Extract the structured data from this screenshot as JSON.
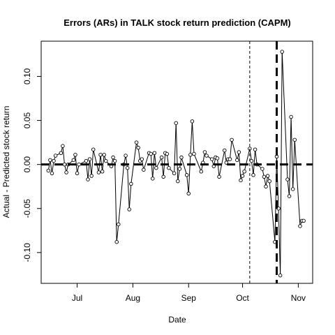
{
  "chart_data": {
    "type": "line",
    "title": "Errors (ARs) in TALK stock return prediction (CAPM)",
    "xlabel": "Date",
    "ylabel": "Actual - Predicted stock return",
    "x_ticks": [
      {
        "label": "Jul",
        "date": "2020-07-01"
      },
      {
        "label": "Aug",
        "date": "2020-08-01"
      },
      {
        "label": "Sep",
        "date": "2020-09-01"
      },
      {
        "label": "Oct",
        "date": "2020-10-01"
      },
      {
        "label": "Nov",
        "date": "2020-11-01"
      }
    ],
    "y_ticks": [
      -0.1,
      -0.05,
      0.0,
      0.05,
      0.1
    ],
    "y_tick_labels": [
      "-0.10",
      "-0.05",
      "0.00",
      "0.05",
      "0.10"
    ],
    "xlim": [
      "2020-06-11",
      "2020-11-09"
    ],
    "ylim": [
      -0.135,
      0.14
    ],
    "grid": false,
    "reference_lines": [
      {
        "orientation": "horizontal",
        "value": 0.0,
        "style": "thick-dashed"
      },
      {
        "orientation": "vertical",
        "date": "2020-10-05",
        "style": "thin-dashed"
      },
      {
        "orientation": "vertical",
        "date": "2020-10-20",
        "style": "thick-dashed"
      }
    ],
    "series": [
      {
        "x": [
          "2020-06-15",
          "2020-06-16",
          "2020-06-17",
          "2020-06-18",
          "2020-06-19",
          "2020-06-22",
          "2020-06-23",
          "2020-06-24",
          "2020-06-25",
          "2020-06-26",
          "2020-06-29",
          "2020-06-30",
          "2020-07-01",
          "2020-07-02",
          "2020-07-06",
          "2020-07-07",
          "2020-07-08",
          "2020-07-09",
          "2020-07-10",
          "2020-07-13",
          "2020-07-14",
          "2020-07-15",
          "2020-07-16",
          "2020-07-17",
          "2020-07-20",
          "2020-07-21",
          "2020-07-22",
          "2020-07-23",
          "2020-07-24",
          "2020-07-27",
          "2020-07-28",
          "2020-07-29",
          "2020-07-30",
          "2020-07-31",
          "2020-08-03",
          "2020-08-04",
          "2020-08-05",
          "2020-08-06",
          "2020-08-07",
          "2020-08-10",
          "2020-08-11",
          "2020-08-12",
          "2020-08-13",
          "2020-08-14",
          "2020-08-17",
          "2020-08-18",
          "2020-08-19",
          "2020-08-20",
          "2020-08-21",
          "2020-08-24",
          "2020-08-25",
          "2020-08-26",
          "2020-08-27",
          "2020-08-28",
          "2020-08-31",
          "2020-09-01",
          "2020-09-02",
          "2020-09-03",
          "2020-09-04",
          "2020-09-08",
          "2020-09-09",
          "2020-09-10",
          "2020-09-11",
          "2020-09-14",
          "2020-09-15",
          "2020-09-16",
          "2020-09-17",
          "2020-09-18",
          "2020-09-21",
          "2020-09-22",
          "2020-09-23",
          "2020-09-24",
          "2020-09-25",
          "2020-09-28",
          "2020-09-29",
          "2020-09-30",
          "2020-10-01",
          "2020-10-02",
          "2020-10-05",
          "2020-10-06",
          "2020-10-07",
          "2020-10-08",
          "2020-10-09",
          "2020-10-12",
          "2020-10-13",
          "2020-10-14",
          "2020-10-15",
          "2020-10-16",
          "2020-10-19",
          "2020-10-20",
          "2020-10-21",
          "2020-10-22",
          "2020-10-23",
          "2020-10-26",
          "2020-10-27",
          "2020-10-28",
          "2020-10-29",
          "2020-10-30",
          "2020-11-02",
          "2020-11-03",
          "2020-11-04"
        ],
        "y": [
          -0.007,
          0.005,
          -0.01,
          0.004,
          0.01,
          0.013,
          0.021,
          0.0,
          -0.009,
          0.0,
          0.005,
          0.011,
          -0.01,
          0.0,
          0.004,
          -0.017,
          0.006,
          -0.013,
          0.017,
          -0.009,
          0.011,
          -0.008,
          0.011,
          0.004,
          -0.002,
          0.008,
          0.004,
          -0.088,
          -0.068,
          0.0,
          0.01,
          -0.004,
          -0.051,
          -0.022,
          0.025,
          0.019,
          0.004,
          0.006,
          -0.006,
          0.013,
          0.012,
          -0.016,
          0.013,
          -0.004,
          0.008,
          -0.014,
          0.013,
          0.012,
          -0.004,
          -0.01,
          0.047,
          -0.019,
          -0.005,
          0.008,
          -0.012,
          -0.033,
          0.011,
          0.049,
          0.012,
          -0.008,
          0.002,
          0.014,
          0.01,
          0.006,
          -0.002,
          0.008,
          0.007,
          -0.014,
          0.016,
          0.002,
          0.006,
          0.006,
          0.028,
          0.005,
          0.014,
          -0.018,
          -0.013,
          -0.008,
          0.018,
          0.004,
          -0.012,
          0.017,
          0.0,
          -0.005,
          -0.014,
          -0.025,
          -0.013,
          -0.019,
          -0.088,
          0.009,
          -0.05,
          -0.126,
          0.128,
          -0.017,
          -0.036,
          0.054,
          -0.028,
          0.028,
          -0.07,
          -0.064,
          -0.064
        ]
      }
    ]
  }
}
